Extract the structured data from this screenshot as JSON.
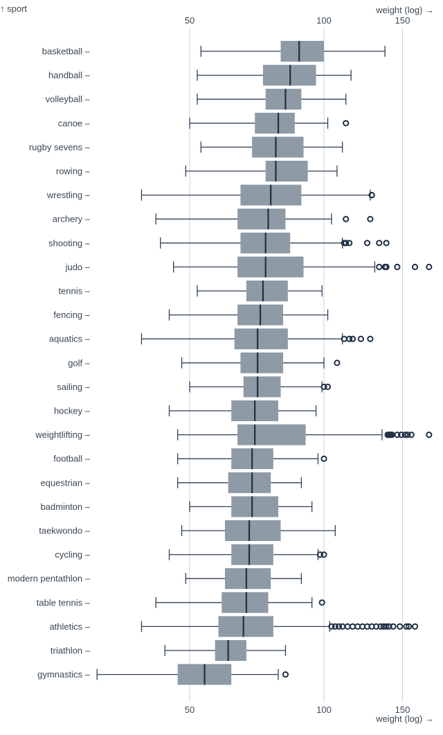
{
  "chart_data": {
    "type": "box",
    "y_title": "↑ sport",
    "x_title": "weight (log) →",
    "x_scale": "log",
    "xlim": [
      30,
      175
    ],
    "x_ticks": [
      50,
      100,
      150
    ],
    "grid": true,
    "categories": [
      {
        "name": "basketball",
        "min": 53,
        "q1": 80,
        "median": 88,
        "q3": 100,
        "max": 137,
        "outliers": []
      },
      {
        "name": "handball",
        "min": 52,
        "q1": 73,
        "median": 84,
        "q3": 96,
        "max": 115,
        "outliers": []
      },
      {
        "name": "volleyball",
        "min": 52,
        "q1": 74,
        "median": 82,
        "q3": 89,
        "max": 112,
        "outliers": []
      },
      {
        "name": "canoe",
        "min": 50,
        "q1": 70,
        "median": 79,
        "q3": 86,
        "max": 102,
        "outliers": [
          112
        ]
      },
      {
        "name": "rugby sevens",
        "min": 53,
        "q1": 69,
        "median": 78,
        "q3": 90,
        "max": 110,
        "outliers": []
      },
      {
        "name": "rowing",
        "min": 49,
        "q1": 74,
        "median": 78,
        "q3": 92,
        "max": 107,
        "outliers": []
      },
      {
        "name": "wrestling",
        "min": 39,
        "q1": 65,
        "median": 76,
        "q3": 89,
        "max": 127,
        "outliers": [
          128,
          128
        ]
      },
      {
        "name": "archery",
        "min": 42,
        "q1": 64,
        "median": 75,
        "q3": 82,
        "max": 104,
        "outliers": [
          112,
          127
        ]
      },
      {
        "name": "shooting",
        "min": 43,
        "q1": 65,
        "median": 74,
        "q3": 84,
        "max": 110,
        "outliers": [
          111,
          112,
          114,
          125,
          133,
          138
        ]
      },
      {
        "name": "judo",
        "min": 46,
        "q1": 64,
        "median": 74,
        "q3": 90,
        "max": 130,
        "outliers": [
          133,
          137,
          138,
          146,
          160,
          172
        ]
      },
      {
        "name": "tennis",
        "min": 52,
        "q1": 67,
        "median": 73,
        "q3": 83,
        "max": 99,
        "outliers": []
      },
      {
        "name": "fencing",
        "min": 45,
        "q1": 64,
        "median": 72,
        "q3": 81,
        "max": 102,
        "outliers": []
      },
      {
        "name": "aquatics",
        "min": 39,
        "q1": 63,
        "median": 71,
        "q3": 83,
        "max": 110,
        "outliers": [
          111,
          114,
          116,
          121,
          127
        ]
      },
      {
        "name": "golf",
        "min": 48,
        "q1": 65,
        "median": 71,
        "q3": 81,
        "max": 100,
        "outliers": [
          107
        ]
      },
      {
        "name": "sailing",
        "min": 50,
        "q1": 66,
        "median": 71,
        "q3": 80,
        "max": 99,
        "outliers": [
          100,
          102
        ]
      },
      {
        "name": "hockey",
        "min": 45,
        "q1": 62,
        "median": 70,
        "q3": 79,
        "max": 96,
        "outliers": []
      },
      {
        "name": "weightlifting",
        "min": 47,
        "q1": 64,
        "median": 70,
        "q3": 91,
        "max": 135,
        "outliers": [
          139,
          140,
          141,
          142,
          146,
          149,
          152,
          154,
          157,
          172
        ]
      },
      {
        "name": "football",
        "min": 47,
        "q1": 62,
        "median": 69,
        "q3": 77,
        "max": 97,
        "outliers": [
          100
        ]
      },
      {
        "name": "equestrian",
        "min": 47,
        "q1": 61,
        "median": 69,
        "q3": 76,
        "max": 89,
        "outliers": []
      },
      {
        "name": "badminton",
        "min": 50,
        "q1": 62,
        "median": 69,
        "q3": 79,
        "max": 94,
        "outliers": []
      },
      {
        "name": "taekwondo",
        "min": 48,
        "q1": 60,
        "median": 68,
        "q3": 80,
        "max": 106,
        "outliers": []
      },
      {
        "name": "cycling",
        "min": 45,
        "q1": 62,
        "median": 68,
        "q3": 77,
        "max": 97,
        "outliers": [
          98,
          100
        ]
      },
      {
        "name": "modern pentathlon",
        "min": 49,
        "q1": 60,
        "median": 67,
        "q3": 76,
        "max": 89,
        "outliers": []
      },
      {
        "name": "table tennis",
        "min": 42,
        "q1": 59,
        "median": 67,
        "q3": 75,
        "max": 94,
        "outliers": [
          99
        ]
      },
      {
        "name": "athletics",
        "min": 39,
        "q1": 58,
        "median": 66,
        "q3": 77,
        "max": 103,
        "outliers": [
          104,
          106,
          108,
          110,
          113,
          116,
          119,
          122,
          125,
          128,
          131,
          134,
          136,
          138,
          140,
          143,
          148,
          153,
          155,
          160
        ]
      },
      {
        "name": "triathlon",
        "min": 44,
        "q1": 57,
        "median": 61,
        "q3": 67,
        "max": 82,
        "outliers": []
      },
      {
        "name": "gymnastics",
        "min": 31,
        "q1": 47,
        "median": 54,
        "q3": 62,
        "max": 79,
        "outliers": [
          82
        ]
      }
    ]
  }
}
